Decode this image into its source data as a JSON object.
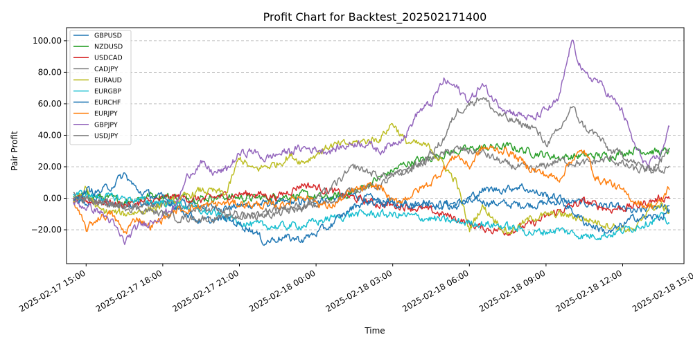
{
  "chart_data": {
    "type": "line",
    "title": "Profit Chart for Backtest_202502171400",
    "xlabel": "Time",
    "ylabel": "Pair Profit",
    "ylim": [
      -41.5,
      108.3
    ],
    "xlim": [
      "2025-02-17 14:14",
      "2025-02-18 14:24"
    ],
    "grid": "y-dashed",
    "legend_position": "top-left",
    "yticks": [
      -20,
      0,
      20,
      40,
      60,
      80,
      100
    ],
    "ytick_labels": [
      "−20.00",
      "0.00",
      "20.00",
      "40.00",
      "60.00",
      "80.00",
      "100.00"
    ],
    "xticks": [
      "2025-02-17 15:00",
      "2025-02-17 18:00",
      "2025-02-17 21:00",
      "2025-02-18 00:00",
      "2025-02-18 03:00",
      "2025-02-18 06:00",
      "2025-02-18 09:00",
      "2025-02-18 12:00",
      "2025-02-18 15:00"
    ],
    "x_start": "2025-02-17 14:30",
    "x_end": "2025-02-18 13:50",
    "series": [
      {
        "name": "GBPUSD",
        "color": "#1f77b4",
        "anchors": [
          [
            0,
            -2
          ],
          [
            0.5,
            -4
          ],
          [
            1,
            1
          ],
          [
            1.5,
            -5
          ],
          [
            2,
            -3
          ],
          [
            3,
            -4
          ],
          [
            4,
            -3
          ],
          [
            5,
            -5
          ],
          [
            6,
            -6
          ],
          [
            7,
            -4
          ],
          [
            8,
            -3
          ],
          [
            9,
            -2
          ],
          [
            10,
            0
          ],
          [
            11,
            2
          ],
          [
            12,
            -2
          ],
          [
            13,
            -3
          ],
          [
            14,
            -4
          ],
          [
            15,
            -3
          ],
          [
            16,
            -2
          ],
          [
            17,
            -4
          ],
          [
            18,
            -4
          ],
          [
            19,
            -2
          ],
          [
            20,
            -3
          ],
          [
            21,
            -5
          ],
          [
            22,
            -9
          ],
          [
            23,
            -4
          ],
          [
            23.3,
            -7
          ]
        ]
      },
      {
        "name": "NZDUSD",
        "color": "#2ca02c",
        "anchors": [
          [
            0,
            2
          ],
          [
            1,
            1
          ],
          [
            2,
            -2
          ],
          [
            3,
            2
          ],
          [
            4,
            1
          ],
          [
            5,
            0
          ],
          [
            6,
            1
          ],
          [
            7,
            0
          ],
          [
            8,
            1
          ],
          [
            9,
            2
          ],
          [
            10,
            0
          ],
          [
            11,
            4
          ],
          [
            12,
            13
          ],
          [
            13,
            22
          ],
          [
            14,
            26
          ],
          [
            15,
            30
          ],
          [
            16,
            32
          ],
          [
            17,
            33
          ],
          [
            18,
            29
          ],
          [
            19,
            26
          ],
          [
            20,
            27
          ],
          [
            21,
            27
          ],
          [
            22,
            31
          ],
          [
            23,
            29
          ],
          [
            23.3,
            30
          ]
        ]
      },
      {
        "name": "USDCAD",
        "color": "#d62728",
        "anchors": [
          [
            0,
            -1
          ],
          [
            1,
            -2
          ],
          [
            2,
            -4
          ],
          [
            3,
            -2
          ],
          [
            4,
            1
          ],
          [
            5,
            -1
          ],
          [
            6,
            2
          ],
          [
            7,
            3
          ],
          [
            8,
            1
          ],
          [
            9,
            9
          ],
          [
            10,
            5
          ],
          [
            11,
            0
          ],
          [
            12,
            -4
          ],
          [
            13,
            -5
          ],
          [
            14,
            -8
          ],
          [
            15,
            -13
          ],
          [
            16,
            -19
          ],
          [
            17,
            -21
          ],
          [
            18,
            -16
          ],
          [
            19,
            -8
          ],
          [
            20,
            -2
          ],
          [
            21,
            -7
          ],
          [
            22,
            -5
          ],
          [
            23,
            0
          ],
          [
            23.3,
            1
          ]
        ]
      },
      {
        "name": "CADJPY",
        "color": "#7f7f7f",
        "anchors": [
          [
            0,
            0
          ],
          [
            1,
            -3
          ],
          [
            2,
            -4
          ],
          [
            3,
            -5
          ],
          [
            4,
            -4
          ],
          [
            5,
            -7
          ],
          [
            6,
            -9
          ],
          [
            7,
            -11
          ],
          [
            8,
            -10
          ],
          [
            9,
            -6
          ],
          [
            10,
            -3
          ],
          [
            11,
            6
          ],
          [
            12,
            8
          ],
          [
            13,
            18
          ],
          [
            14,
            25
          ],
          [
            15,
            31
          ],
          [
            16,
            29
          ],
          [
            17,
            21
          ],
          [
            18,
            18
          ],
          [
            19,
            24
          ],
          [
            20,
            22
          ],
          [
            21,
            25
          ],
          [
            22,
            18
          ],
          [
            23,
            17
          ],
          [
            23.3,
            21
          ]
        ]
      },
      {
        "name": "EURAUD",
        "color": "#bcbd22",
        "anchors": [
          [
            0,
            -3
          ],
          [
            0.5,
            6
          ],
          [
            1,
            -8
          ],
          [
            2,
            -10
          ],
          [
            3,
            -7
          ],
          [
            4,
            -2
          ],
          [
            5,
            5
          ],
          [
            6,
            3
          ],
          [
            6.5,
            26
          ],
          [
            7,
            18
          ],
          [
            8,
            22
          ],
          [
            8.5,
            27
          ],
          [
            9,
            23
          ],
          [
            10,
            33
          ],
          [
            11,
            35
          ],
          [
            12,
            38
          ],
          [
            12.5,
            48
          ],
          [
            13,
            36
          ],
          [
            14,
            32
          ],
          [
            15,
            10
          ],
          [
            15.5,
            -20
          ],
          [
            16,
            -5
          ],
          [
            17,
            -22
          ],
          [
            18,
            -12
          ],
          [
            19,
            -10
          ],
          [
            20,
            -13
          ],
          [
            21,
            -17
          ],
          [
            22,
            -21
          ],
          [
            22.5,
            -6
          ],
          [
            23,
            -5
          ],
          [
            23.3,
            -8
          ]
        ]
      },
      {
        "name": "EURGBP",
        "color": "#17becf",
        "anchors": [
          [
            0,
            3
          ],
          [
            1,
            1
          ],
          [
            2,
            0
          ],
          [
            3,
            -2
          ],
          [
            4,
            -3
          ],
          [
            5,
            -8
          ],
          [
            6,
            -12
          ],
          [
            7,
            -17
          ],
          [
            8,
            -18
          ],
          [
            9,
            -17
          ],
          [
            10,
            -13
          ],
          [
            11,
            -10
          ],
          [
            12,
            -10
          ],
          [
            13,
            -11
          ],
          [
            14,
            -13
          ],
          [
            15,
            -15
          ],
          [
            16,
            -16
          ],
          [
            17,
            -18
          ],
          [
            18,
            -22
          ],
          [
            19,
            -20
          ],
          [
            20,
            -24
          ],
          [
            21,
            -23
          ],
          [
            22,
            -18
          ],
          [
            23,
            -12
          ],
          [
            23.3,
            -15
          ]
        ]
      },
      {
        "name": "EURCHF",
        "color": "#1f77b4",
        "anchors": [
          [
            0,
            -3
          ],
          [
            0.5,
            5
          ],
          [
            1,
            4
          ],
          [
            1.5,
            8
          ],
          [
            2,
            15
          ],
          [
            2.5,
            5
          ],
          [
            3,
            2
          ],
          [
            3.5,
            0
          ],
          [
            4,
            -5
          ],
          [
            4.5,
            -10
          ],
          [
            5,
            -15
          ],
          [
            6,
            -13
          ],
          [
            7,
            -20
          ],
          [
            7.5,
            -28
          ],
          [
            8,
            -25
          ],
          [
            9,
            -26
          ],
          [
            10,
            -18
          ],
          [
            11,
            -5
          ],
          [
            11.5,
            -2
          ],
          [
            12,
            -3
          ],
          [
            13,
            -4
          ],
          [
            14,
            -3
          ],
          [
            15,
            -5
          ],
          [
            16,
            5
          ],
          [
            17,
            6
          ],
          [
            17.5,
            8
          ],
          [
            18,
            4
          ],
          [
            19,
            0
          ],
          [
            20,
            -15
          ],
          [
            21,
            -22
          ],
          [
            22,
            -12
          ],
          [
            23,
            -12
          ],
          [
            23.3,
            -8
          ]
        ]
      },
      {
        "name": "EURJPY",
        "color": "#ff7f0e",
        "anchors": [
          [
            0,
            -2
          ],
          [
            0.5,
            -20
          ],
          [
            1,
            -12
          ],
          [
            1.5,
            -10
          ],
          [
            2,
            -22
          ],
          [
            2.5,
            -12
          ],
          [
            3,
            -18
          ],
          [
            4,
            -8
          ],
          [
            5,
            -5
          ],
          [
            6,
            -3
          ],
          [
            7,
            -4
          ],
          [
            8,
            -5
          ],
          [
            9,
            2
          ],
          [
            10,
            -6
          ],
          [
            11,
            5
          ],
          [
            12,
            8
          ],
          [
            12.5,
            -3
          ],
          [
            13,
            0
          ],
          [
            14,
            10
          ],
          [
            15,
            28
          ],
          [
            15.5,
            20
          ],
          [
            16,
            32
          ],
          [
            17,
            30
          ],
          [
            18,
            18
          ],
          [
            19,
            12
          ],
          [
            19.5,
            25
          ],
          [
            20,
            30
          ],
          [
            20.5,
            12
          ],
          [
            21,
            10
          ],
          [
            22,
            -2
          ],
          [
            22.5,
            -5
          ],
          [
            23,
            -3
          ],
          [
            23.3,
            7
          ]
        ]
      },
      {
        "name": "GBPJPY",
        "color": "#9467bd",
        "anchors": [
          [
            0,
            -3
          ],
          [
            1,
            -8
          ],
          [
            1.5,
            -15
          ],
          [
            2,
            -28
          ],
          [
            2.5,
            -18
          ],
          [
            3,
            -15
          ],
          [
            4,
            -5
          ],
          [
            4.5,
            15
          ],
          [
            5,
            22
          ],
          [
            5.5,
            16
          ],
          [
            6,
            18
          ],
          [
            6.5,
            28
          ],
          [
            7,
            30
          ],
          [
            7.5,
            25
          ],
          [
            8,
            28
          ],
          [
            9,
            32
          ],
          [
            10,
            30
          ],
          [
            11,
            35
          ],
          [
            11.5,
            35
          ],
          [
            12,
            30
          ],
          [
            13,
            40
          ],
          [
            13.5,
            55
          ],
          [
            14,
            60
          ],
          [
            14.5,
            75
          ],
          [
            15,
            70
          ],
          [
            15.5,
            62
          ],
          [
            16,
            72
          ],
          [
            16.5,
            62
          ],
          [
            17,
            56
          ],
          [
            18,
            50
          ],
          [
            19,
            62
          ],
          [
            19.5,
            100
          ],
          [
            20,
            78
          ],
          [
            20.5,
            75
          ],
          [
            21,
            65
          ],
          [
            21.5,
            55
          ],
          [
            22,
            32
          ],
          [
            22.5,
            20
          ],
          [
            23,
            28
          ],
          [
            23.3,
            45
          ]
        ]
      },
      {
        "name": "USDJPY",
        "color": "#7f7f7f",
        "anchors": [
          [
            0,
            2
          ],
          [
            1,
            -3
          ],
          [
            2,
            -5
          ],
          [
            3,
            -8
          ],
          [
            4,
            -12
          ],
          [
            5,
            -13
          ],
          [
            6,
            -12
          ],
          [
            7,
            -11
          ],
          [
            8,
            -6
          ],
          [
            9,
            -5
          ],
          [
            10,
            5
          ],
          [
            11,
            20
          ],
          [
            12,
            14
          ],
          [
            13,
            16
          ],
          [
            14,
            28
          ],
          [
            14.5,
            38
          ],
          [
            15,
            55
          ],
          [
            15.5,
            60
          ],
          [
            16,
            65
          ],
          [
            16.5,
            55
          ],
          [
            17,
            50
          ],
          [
            18,
            45
          ],
          [
            18.5,
            35
          ],
          [
            19,
            42
          ],
          [
            19.5,
            58
          ],
          [
            20,
            45
          ],
          [
            20.5,
            40
          ],
          [
            21,
            30
          ],
          [
            21.5,
            28
          ],
          [
            22,
            22
          ],
          [
            22.5,
            18
          ],
          [
            23,
            24
          ],
          [
            23.3,
            31
          ]
        ]
      }
    ]
  }
}
